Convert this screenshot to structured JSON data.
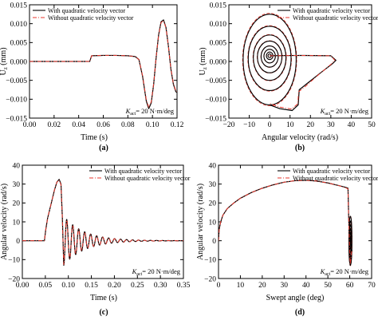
{
  "series_legend": [
    "With quadratic velocity vector",
    "Without quadratic velocity vector"
  ],
  "colors": {
    "with": "#000000",
    "without": "#e8372c",
    "axis": "#000000"
  },
  "chart_data": [
    {
      "id": "a",
      "type": "line",
      "panel_label": "(a)",
      "xlabel": "Time (s)",
      "ylabel_main": "U",
      "ylabel_sub": "z",
      "ylabel_unit": " (mm)",
      "xlim": [
        0.0,
        0.12
      ],
      "ylim": [
        -0.015,
        0.015
      ],
      "xticks": [
        0.0,
        0.02,
        0.04,
        0.06,
        0.08,
        0.1,
        0.12
      ],
      "xtick_labels": [
        "0.00",
        "0.02",
        "0.04",
        "0.06",
        "0.08",
        "0.10",
        "0.12"
      ],
      "yticks": [
        -0.015,
        -0.01,
        -0.005,
        0.0,
        0.005,
        0.01,
        0.015
      ],
      "ytick_labels": [
        "−0.015",
        "−0.010",
        "−0.005",
        "0.000",
        "0.005",
        "0.010",
        "0.015"
      ],
      "legend_position": "top-left",
      "annotation_main": "K",
      "annotation_sub": "act",
      "annotation_rest": "= 20 N·m/deg",
      "series": [
        {
          "name": "With quadratic velocity vector",
          "x": [
            0,
            0.049,
            0.0505,
            0.06,
            0.07,
            0.08,
            0.086,
            0.089,
            0.092,
            0.095,
            0.097,
            0.099,
            0.101,
            0.103,
            0.105,
            0.107,
            0.109,
            0.111,
            0.113,
            0.115,
            0.117,
            0.119,
            0.12
          ],
          "y": [
            0,
            0,
            0.0015,
            0.0016,
            0.0016,
            0.0015,
            0.0013,
            0.0005,
            -0.004,
            -0.0105,
            -0.0125,
            -0.011,
            -0.006,
            0.001,
            0.007,
            0.0105,
            0.011,
            0.009,
            0.004,
            -0.002,
            -0.006,
            -0.008,
            -0.0082
          ]
        },
        {
          "name": "Without quadratic velocity vector",
          "x": [
            0,
            0.049,
            0.0505,
            0.06,
            0.07,
            0.08,
            0.086,
            0.089,
            0.092,
            0.095,
            0.097,
            0.099,
            0.101,
            0.103,
            0.105,
            0.107,
            0.109,
            0.111,
            0.113,
            0.115,
            0.117,
            0.119,
            0.12
          ],
          "y": [
            0,
            0,
            0.0015,
            0.0016,
            0.0016,
            0.0015,
            0.0013,
            0.0005,
            -0.0038,
            -0.0102,
            -0.0121,
            -0.0107,
            -0.0058,
            0.0011,
            0.0069,
            0.0103,
            0.0108,
            0.0089,
            0.004,
            -0.0019,
            -0.0058,
            -0.0078,
            -0.008
          ]
        }
      ]
    },
    {
      "id": "b",
      "type": "line",
      "panel_label": "(b)",
      "xlabel": "Angular velocity (rad/s)",
      "ylabel_main": "U",
      "ylabel_sub": "z",
      "ylabel_unit": " (mm)",
      "xlim": [
        -20,
        50
      ],
      "ylim": [
        -0.015,
        0.015
      ],
      "xticks": [
        -20,
        -10,
        0,
        10,
        20,
        30,
        40,
        50
      ],
      "xtick_labels": [
        "−20",
        "−10",
        "0",
        "10",
        "20",
        "30",
        "40",
        "50"
      ],
      "yticks": [
        -0.015,
        -0.01,
        -0.005,
        0.0,
        0.005,
        0.01,
        0.015
      ],
      "ytick_labels": [
        "−0.015",
        "−0.010",
        "−0.005",
        "0.000",
        "0.005",
        "0.010",
        "0.015"
      ],
      "legend_position": "top-right",
      "annotation_main": "K",
      "annotation_sub": "act",
      "annotation_rest": "= 20 N·m/deg",
      "phase_loops": [
        {
          "cx": 0,
          "cy": 0.0005,
          "rx": 13,
          "ry": 0.012
        },
        {
          "cx": 0,
          "cy": 0.0008,
          "rx": 10.5,
          "ry": 0.0085
        },
        {
          "cx": 0,
          "cy": 0.001,
          "rx": 8,
          "ry": 0.006
        },
        {
          "cx": 0,
          "cy": 0.0012,
          "rx": 6,
          "ry": 0.0042
        },
        {
          "cx": 0,
          "cy": 0.0013,
          "rx": 4.2,
          "ry": 0.0028
        },
        {
          "cx": 0,
          "cy": 0.0014,
          "rx": 2.8,
          "ry": 0.0018
        },
        {
          "cx": 0,
          "cy": 0.0015,
          "rx": 1.6,
          "ry": 0.001
        },
        {
          "cx": 0,
          "cy": 0.0015,
          "rx": 0.8,
          "ry": 0.0005
        }
      ],
      "series": [
        {
          "name": "With quadratic velocity vector",
          "x": [
            0,
            15,
            30,
            32.5,
            31,
            25,
            18,
            14.5,
            14,
            11,
            5,
            0
          ],
          "y": [
            0.0015,
            0.0016,
            0.0015,
            0.0003,
            -0.0005,
            -0.003,
            -0.006,
            -0.0075,
            -0.0115,
            -0.013,
            -0.0125,
            -0.0115
          ]
        },
        {
          "name": "Without quadratic velocity vector",
          "x": [
            0,
            15,
            30,
            32,
            30,
            24,
            17.5,
            14.2,
            13.8,
            10.8,
            5,
            0
          ],
          "y": [
            0.0015,
            0.0016,
            0.0015,
            0.0003,
            -0.0008,
            -0.0035,
            -0.0066,
            -0.008,
            -0.0112,
            -0.0126,
            -0.0121,
            -0.0111
          ]
        }
      ]
    },
    {
      "id": "c",
      "type": "line",
      "panel_label": "(c)",
      "xlabel": "Time (s)",
      "ylabel": "Angular velocity (rad/s)",
      "xlim": [
        0,
        0.35
      ],
      "ylim": [
        -20,
        40
      ],
      "xticks": [
        0.0,
        0.05,
        0.1,
        0.15,
        0.2,
        0.25,
        0.3,
        0.35
      ],
      "xtick_labels": [
        "0.00",
        "0.05",
        "0.10",
        "0.15",
        "0.20",
        "0.25",
        "0.30",
        "0.35"
      ],
      "yticks": [
        -20,
        -10,
        0,
        10,
        20,
        30,
        40
      ],
      "ytick_labels": [
        "−20",
        "−10",
        "0",
        "10",
        "20",
        "30",
        "40"
      ],
      "legend_position": "top-right",
      "annotation_main": "K",
      "annotation_sub": "act",
      "annotation_rest": "= 20 N·m/deg",
      "series": [
        {
          "name": "With quadratic velocity vector",
          "x": [
            0,
            0.048,
            0.051,
            0.055,
            0.06,
            0.065,
            0.07,
            0.075,
            0.08,
            0.084,
            0.087,
            0.09
          ],
          "y": [
            0,
            0,
            6,
            12,
            17,
            22,
            27,
            31,
            32.5,
            30,
            12,
            -13
          ],
          "osc": {
            "t0": 0.09,
            "t1": 0.35,
            "period": 0.013,
            "amp0": 13,
            "decay": 0.045
          }
        },
        {
          "name": "Without quadratic velocity vector",
          "x": [
            0,
            0.048,
            0.051,
            0.055,
            0.06,
            0.065,
            0.07,
            0.075,
            0.08,
            0.084,
            0.087,
            0.09
          ],
          "y": [
            0,
            0,
            6,
            12,
            17,
            22,
            27,
            31,
            32.2,
            29.6,
            11.6,
            -12.6
          ],
          "osc": {
            "t0": 0.09,
            "t1": 0.35,
            "period": 0.013,
            "amp0": 12.6,
            "decay": 0.045
          }
        }
      ]
    },
    {
      "id": "d",
      "type": "line",
      "panel_label": "(d)",
      "xlabel": "Swept angle (deg)",
      "ylabel": "Angular velocity (rad/s)",
      "xlim": [
        0,
        70
      ],
      "ylim": [
        -20,
        40
      ],
      "xticks": [
        0,
        10,
        20,
        30,
        40,
        50,
        60,
        70
      ],
      "xtick_labels": [
        "0",
        "10",
        "20",
        "30",
        "40",
        "50",
        "60",
        "70"
      ],
      "yticks": [
        -20,
        -10,
        0,
        10,
        20,
        30,
        40
      ],
      "ytick_labels": [
        "−20",
        "−10",
        "0",
        "10",
        "20",
        "30",
        "40"
      ],
      "legend_position": "top-right",
      "annotation_main": "K",
      "annotation_sub": "act",
      "annotation_rest": "= 20 N·m/deg",
      "phase_loops": [
        {
          "cx": 60.3,
          "cy": 0,
          "rx": 0.7,
          "ry": 13
        },
        {
          "cx": 60.3,
          "cy": 0,
          "rx": 0.6,
          "ry": 10.5
        },
        {
          "cx": 60.3,
          "cy": 0,
          "rx": 0.5,
          "ry": 8.5
        },
        {
          "cx": 60.3,
          "cy": 0,
          "rx": 0.4,
          "ry": 6.5
        },
        {
          "cx": 60.3,
          "cy": 0,
          "rx": 0.3,
          "ry": 4.5
        },
        {
          "cx": 60.3,
          "cy": 0,
          "rx": 0.2,
          "ry": 2.5
        }
      ],
      "series": [
        {
          "name": "With quadratic velocity vector",
          "x": [
            0,
            0.3,
            1,
            2,
            4,
            7,
            10,
            15,
            20,
            25,
            30,
            35,
            40,
            45,
            50,
            55,
            58,
            59.2,
            59.5,
            60.2,
            61
          ],
          "y": [
            0,
            6,
            10,
            13.5,
            17,
            20,
            22.5,
            25.5,
            27.8,
            29.6,
            31,
            31.8,
            32,
            31.6,
            30.6,
            29.2,
            28.3,
            27.8,
            13,
            -13,
            -5
          ]
        },
        {
          "name": "Without quadratic velocity vector",
          "x": [
            0,
            0.3,
            1,
            2,
            4,
            7,
            10,
            15,
            20,
            25,
            30,
            35,
            40,
            45,
            50,
            55,
            58,
            59.2,
            59.5,
            60.2,
            61
          ],
          "y": [
            0,
            6,
            10,
            13.5,
            17,
            20,
            22.5,
            25.5,
            27.8,
            29.6,
            31,
            31.8,
            32,
            31.6,
            30.6,
            29.2,
            28.1,
            27.5,
            12.5,
            -12.5,
            -4.8
          ]
        }
      ]
    }
  ]
}
